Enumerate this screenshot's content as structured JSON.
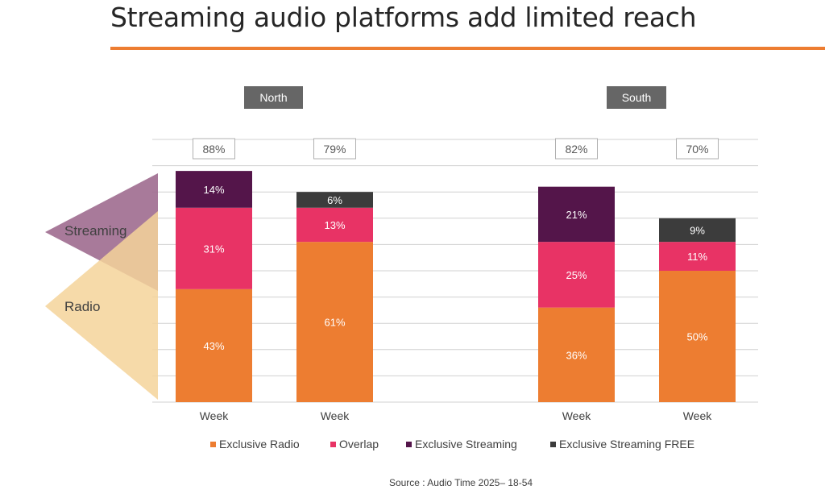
{
  "title": "Streaming audio platforms add limited reach",
  "source": "Source : Audio Time 2025– 18-54",
  "colors": {
    "accent": "#ED7D31",
    "exclusive_radio": "#ED7D31",
    "overlap": "#E83365",
    "exclusive_streaming": "#54154A",
    "exclusive_streaming_free": "#3C3C3C",
    "group_header_bg": "#666666",
    "streaming_triangle": "#9E6B8F",
    "radio_triangle": "#F5D49A"
  },
  "side_labels": {
    "streaming": "Streaming",
    "radio": "Radio"
  },
  "chart_data": {
    "type": "bar",
    "stacked": true,
    "title": "Streaming audio platforms add limited reach",
    "ylim": [
      0,
      100
    ],
    "groups": [
      {
        "name": "North",
        "bars": [
          {
            "category": "Week",
            "total": "88%",
            "segments": [
              {
                "series": "Exclusive Radio",
                "value": 43,
                "label": "43%"
              },
              {
                "series": "Overlap",
                "value": 31,
                "label": "31%"
              },
              {
                "series": "Exclusive Streaming",
                "value": 14,
                "label": "14%"
              }
            ]
          },
          {
            "category": "Week",
            "total": "79%",
            "segments": [
              {
                "series": "Exclusive Radio",
                "value": 61,
                "label": "61%"
              },
              {
                "series": "Overlap",
                "value": 13,
                "label": "13%"
              },
              {
                "series": "Exclusive Streaming FREE",
                "value": 6,
                "label": "6%"
              }
            ]
          }
        ]
      },
      {
        "name": "South",
        "bars": [
          {
            "category": "Week",
            "total": "82%",
            "segments": [
              {
                "series": "Exclusive Radio",
                "value": 36,
                "label": "36%"
              },
              {
                "series": "Overlap",
                "value": 25,
                "label": "25%"
              },
              {
                "series": "Exclusive Streaming",
                "value": 21,
                "label": "21%"
              }
            ]
          },
          {
            "category": "Week",
            "total": "70%",
            "segments": [
              {
                "series": "Exclusive Radio",
                "value": 50,
                "label": "50%"
              },
              {
                "series": "Overlap",
                "value": 11,
                "label": "11%"
              },
              {
                "series": "Exclusive Streaming FREE",
                "value": 9,
                "label": "9%"
              }
            ]
          }
        ]
      }
    ],
    "legend": [
      {
        "name": "Exclusive Radio",
        "color": "#ED7D31"
      },
      {
        "name": "Overlap",
        "color": "#E83365"
      },
      {
        "name": "Exclusive Streaming",
        "color": "#54154A"
      },
      {
        "name": "Exclusive Streaming FREE",
        "color": "#3C3C3C"
      }
    ]
  }
}
